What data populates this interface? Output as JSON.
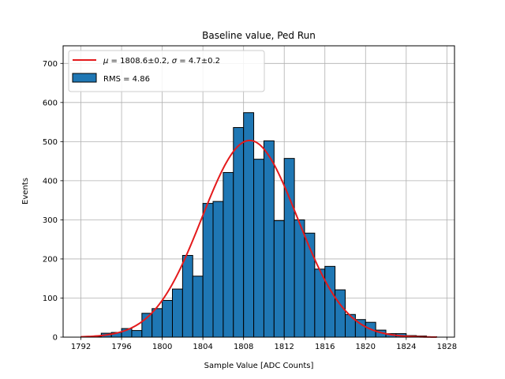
{
  "chart_data": {
    "type": "bar",
    "title": "Baseline value, Ped Run",
    "xlabel": "Sample Value [ADC Counts]",
    "ylabel": "Events",
    "xlim": [
      1790.25,
      1828.75
    ],
    "ylim": [
      0,
      745
    ],
    "xticks": [
      1792,
      1796,
      1800,
      1804,
      1808,
      1812,
      1816,
      1820,
      1824,
      1828
    ],
    "yticks": [
      0,
      100,
      200,
      300,
      400,
      500,
      600,
      700
    ],
    "grid": true,
    "legend_position": "top-left",
    "bin_edges": [
      1792,
      1793,
      1794,
      1795,
      1796,
      1797,
      1798,
      1799,
      1800,
      1801,
      1802,
      1803,
      1804,
      1805,
      1806,
      1807,
      1808,
      1809,
      1810,
      1811,
      1812,
      1813,
      1814,
      1815,
      1816,
      1817,
      1818,
      1819,
      1820,
      1821,
      1822,
      1823,
      1824,
      1825,
      1826,
      1827
    ],
    "counts": [
      1,
      2,
      10,
      12,
      22,
      17,
      61,
      73,
      94,
      123,
      209,
      156,
      342,
      347,
      421,
      536,
      574,
      455,
      502,
      298,
      457,
      300,
      266,
      174,
      181,
      121,
      58,
      45,
      38,
      18,
      9,
      9,
      4,
      3,
      1
    ],
    "series": [
      {
        "name": "RMS = 4.86",
        "kind": "histogram",
        "color": "#1f77b4",
        "edgecolor": "#000000"
      },
      {
        "name": "$\\mu = 1808.6\\pm0.2$, $\\sigma = 4.7\\pm0.2$",
        "kind": "gaussian-fit",
        "color": "#e41a1c",
        "mean": 1808.6,
        "sigma": 4.7,
        "amplitude": 503,
        "x_range": [
          1792,
          1827
        ]
      }
    ]
  },
  "legend": {
    "fit_label_mu_symbol": "μ",
    "fit_label_mu_rest": " = 1808.6±0.2, ",
    "fit_label_sigma_symbol": "σ",
    "fit_label_sigma_rest": " = 4.7±0.2",
    "hist_label": "RMS = 4.86"
  }
}
